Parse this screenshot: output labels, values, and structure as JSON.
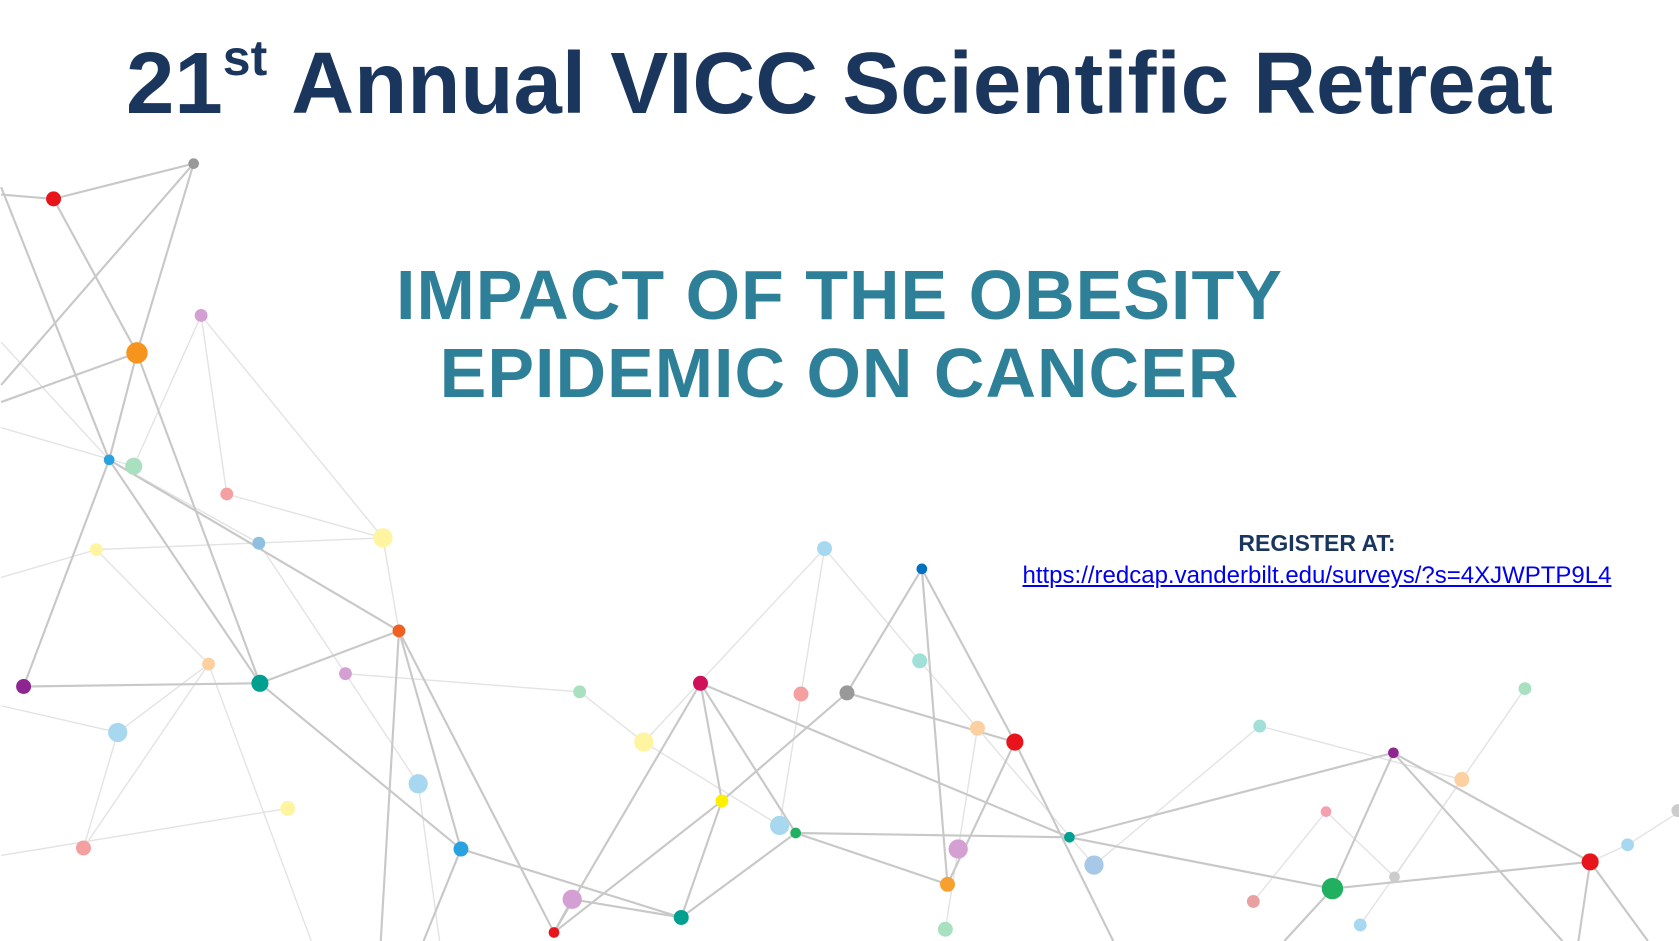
{
  "header": {
    "title_number": "21",
    "title_suffix": "st",
    "title_rest": "Annual VICC Scientific Retreat"
  },
  "subtitle": {
    "lines": [
      "IMPACT OF THE OBESITY",
      "EPIDEMIC ON CANCER"
    ]
  },
  "register": {
    "label": "REGISTER AT:",
    "link": "https://redcap.vanderbilt.edu/surveys/?s=4XJWPTP9L4"
  }
}
